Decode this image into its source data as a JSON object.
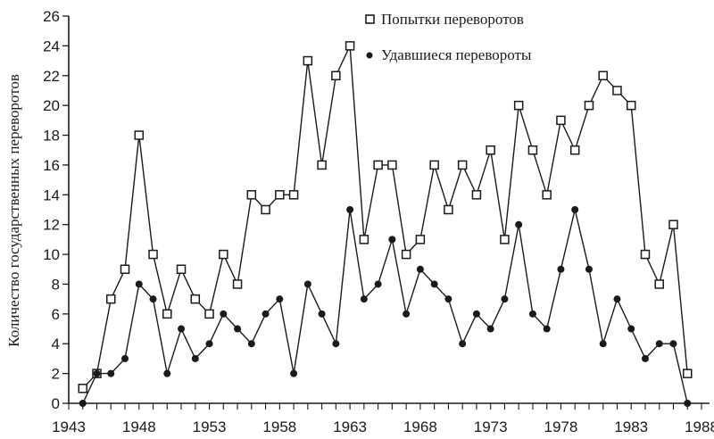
{
  "chart_data": {
    "type": "line",
    "title": "",
    "xlabel": "",
    "ylabel": "Количество государственных переворотов",
    "xlim": [
      1943,
      1988
    ],
    "ylim": [
      0,
      26
    ],
    "grid": false,
    "legend_position": "top-center",
    "x_ticks": [
      1943,
      1948,
      1953,
      1958,
      1963,
      1968,
      1973,
      1978,
      1983,
      1988
    ],
    "y_ticks": [
      0,
      2,
      4,
      6,
      8,
      10,
      12,
      14,
      16,
      18,
      20,
      22,
      24,
      26
    ],
    "x": [
      1944,
      1945,
      1946,
      1947,
      1948,
      1949,
      1950,
      1951,
      1952,
      1953,
      1954,
      1955,
      1956,
      1957,
      1958,
      1959,
      1960,
      1961,
      1962,
      1963,
      1964,
      1965,
      1966,
      1967,
      1968,
      1969,
      1970,
      1971,
      1972,
      1973,
      1974,
      1975,
      1976,
      1977,
      1978,
      1979,
      1980,
      1981,
      1982,
      1983,
      1984,
      1985,
      1986,
      1987
    ],
    "series": [
      {
        "name": "Попытки переворотов",
        "marker": "open-square",
        "values": [
          1,
          2,
          7,
          9,
          18,
          10,
          6,
          9,
          7,
          6,
          10,
          8,
          14,
          13,
          14,
          14,
          23,
          16,
          22,
          24,
          11,
          16,
          16,
          10,
          11,
          16,
          13,
          16,
          14,
          17,
          11,
          20,
          17,
          14,
          19,
          17,
          20,
          22,
          21,
          20,
          10,
          8,
          12,
          2
        ]
      },
      {
        "name": "Удавшиеся перевороты",
        "marker": "filled-circle",
        "values": [
          0,
          2,
          2,
          3,
          8,
          7,
          2,
          5,
          3,
          4,
          6,
          5,
          4,
          6,
          7,
          2,
          8,
          6,
          4,
          13,
          7,
          8,
          11,
          6,
          9,
          8,
          7,
          4,
          6,
          5,
          7,
          12,
          6,
          5,
          9,
          13,
          9,
          4,
          7,
          5,
          3,
          4,
          4,
          0
        ]
      }
    ]
  },
  "legend": {
    "attempts_label": "Попытки переворотов",
    "successful_label": "Удавшиеся перевороты"
  },
  "axes": {
    "ylabel": "Количество государственных переворотов"
  },
  "colors": {
    "ink": "#1a1a1a",
    "background": "#ffffff"
  }
}
